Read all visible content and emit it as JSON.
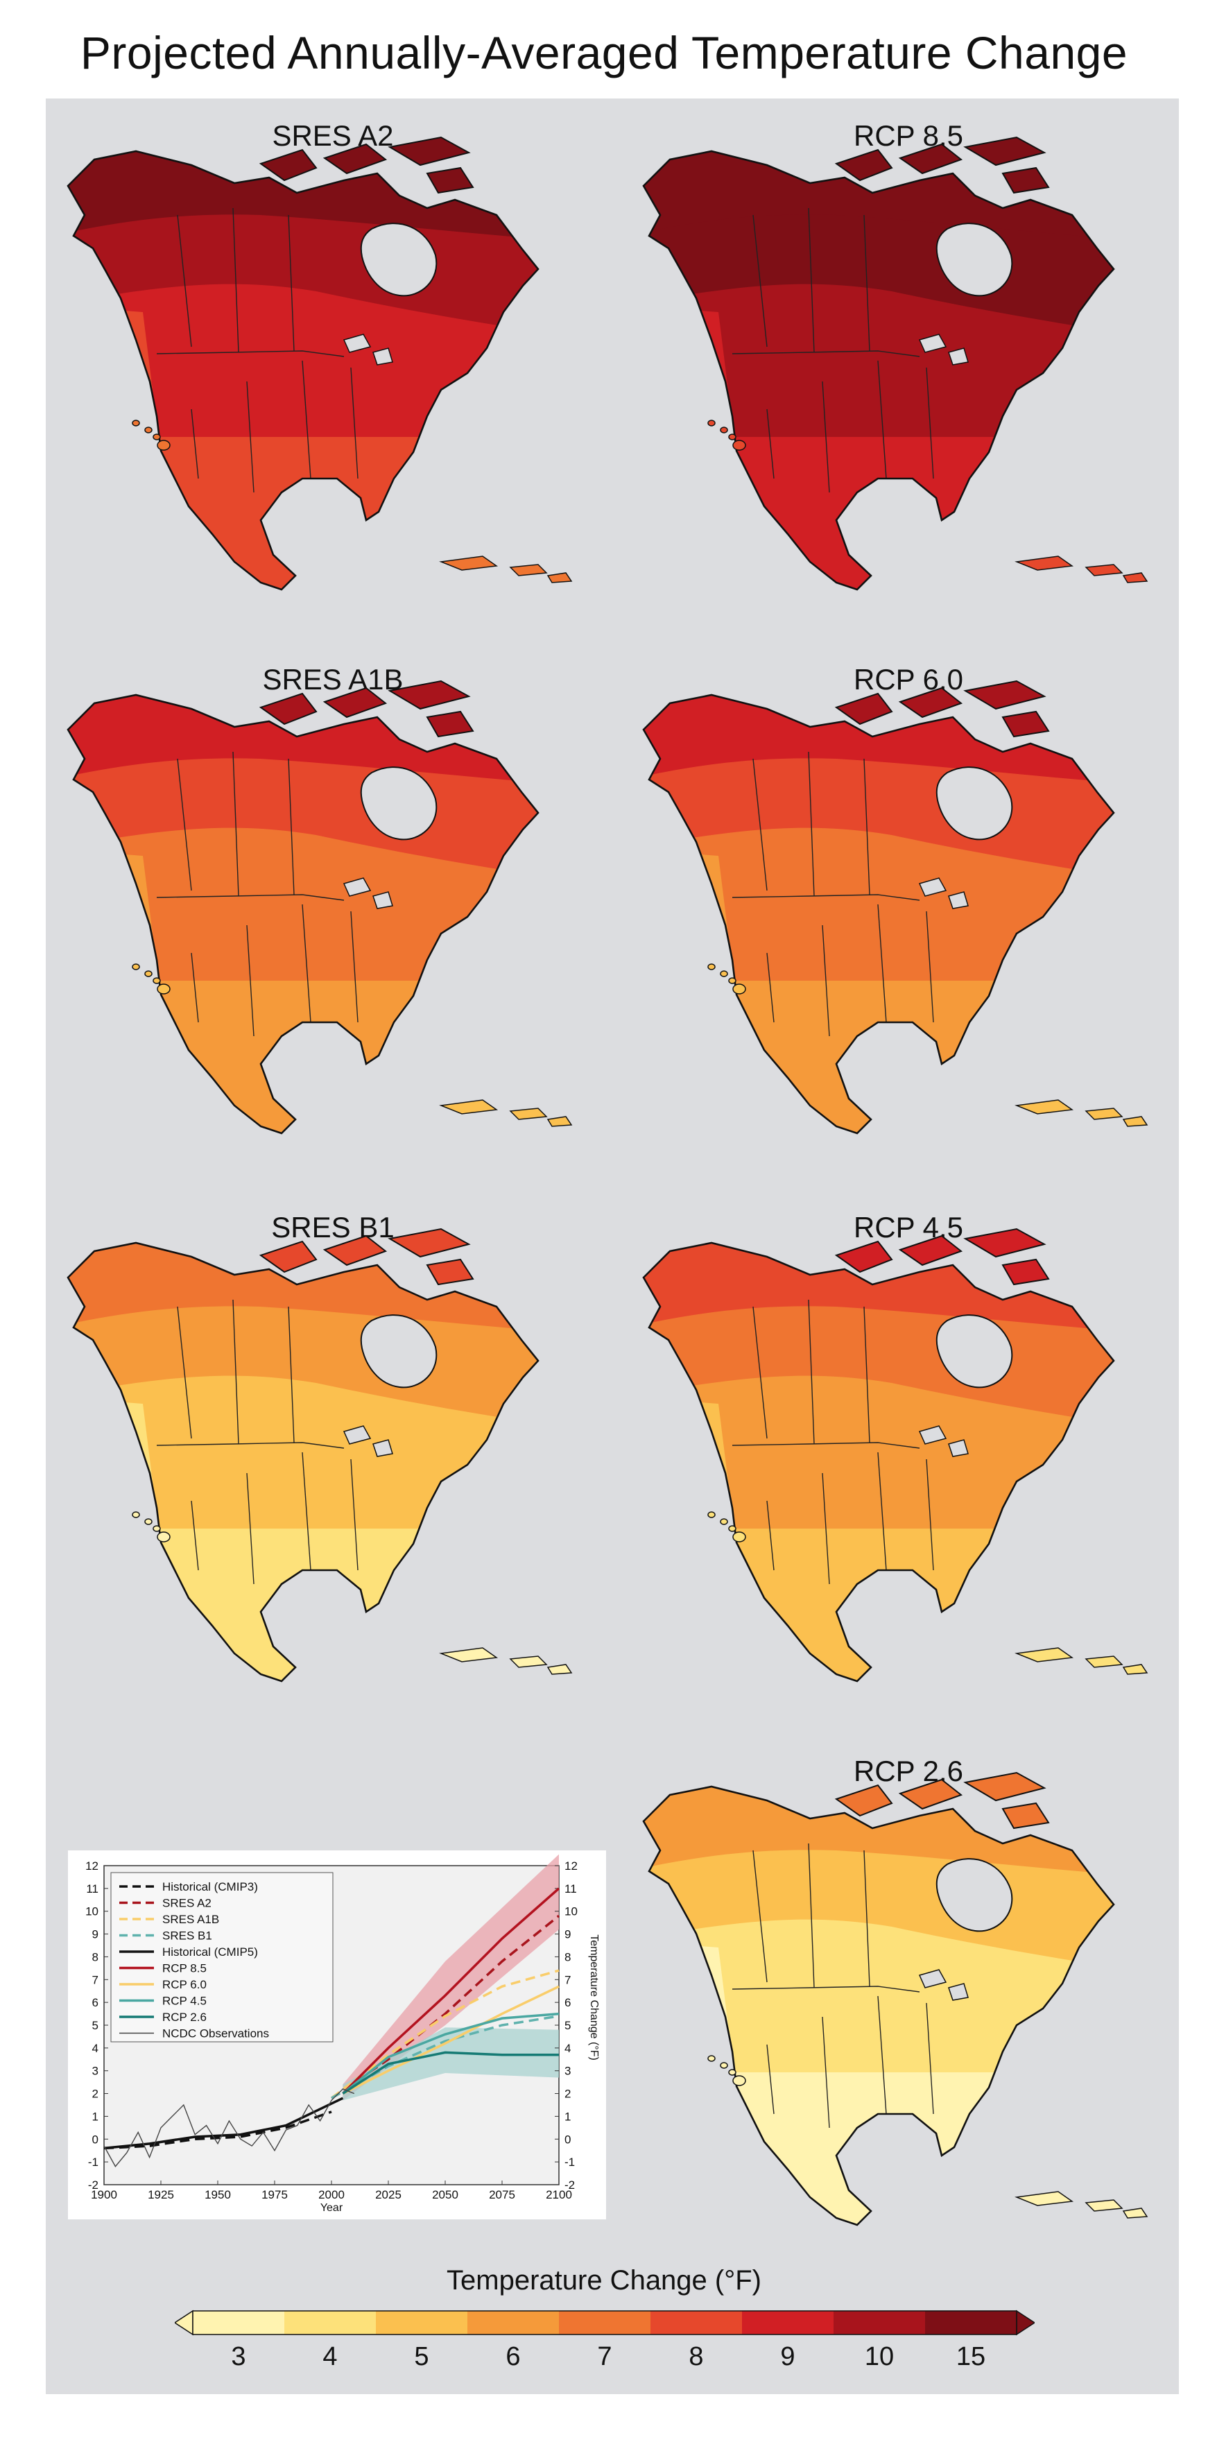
{
  "title": "Projected Annually-Averaged Temperature Change",
  "colors": {
    "panel_bg": "#dcdde0",
    "water": "#dcdde0",
    "land_outline": "#111111",
    "scale": [
      "#fff3b0",
      "#fde17a",
      "#fbc04f",
      "#f59a3a",
      "#ef7531",
      "#e6482c",
      "#d11f24",
      "#a8141c",
      "#7e0f16"
    ]
  },
  "maps": [
    {
      "id": "sres-a2",
      "label": "SRES A2",
      "level": 6
    },
    {
      "id": "rcp-85",
      "label": "RCP 8.5",
      "level": 7
    },
    {
      "id": "sres-a1b",
      "label": "SRES A1B",
      "level": 4
    },
    {
      "id": "rcp-60",
      "label": "RCP 6.0",
      "level": 4
    },
    {
      "id": "sres-b1",
      "label": "SRES B1",
      "level": 2
    },
    {
      "id": "rcp-45",
      "label": "RCP 4.5",
      "level": 3
    },
    {
      "id": "rcp-26",
      "label": "RCP 2.6",
      "level": 1
    }
  ],
  "colorbar": {
    "title": "Temperature Change (°F)",
    "ticks": [
      "3",
      "4",
      "5",
      "6",
      "7",
      "8",
      "9",
      "10",
      "15"
    ]
  },
  "chart_data": {
    "type": "line",
    "xlabel": "Year",
    "ylabel": "Temperature Change (°F)",
    "xlim": [
      1900,
      2100
    ],
    "ylim": [
      -2,
      12
    ],
    "x_ticks": [
      "1900",
      "1925",
      "1950",
      "1975",
      "2000",
      "2025",
      "2050",
      "2075",
      "2100"
    ],
    "y_ticks": [
      "-2",
      "-1",
      "0",
      "1",
      "2",
      "3",
      "4",
      "5",
      "6",
      "7",
      "8",
      "9",
      "10",
      "11",
      "12"
    ],
    "legend_position": "top-left",
    "series": [
      {
        "name": "Historical (CMIP3)",
        "color": "#111111",
        "dash": true,
        "x": [
          1900,
          1920,
          1940,
          1960,
          1980,
          2000
        ],
        "y": [
          -0.4,
          -0.3,
          0.0,
          0.1,
          0.5,
          1.2
        ]
      },
      {
        "name": "SRES A2",
        "color": "#a8141c",
        "dash": true,
        "x": [
          2000,
          2025,
          2050,
          2075,
          2100
        ],
        "y": [
          1.8,
          3.5,
          5.5,
          7.8,
          9.8
        ]
      },
      {
        "name": "SRES A1B",
        "color": "#f9cd6a",
        "dash": true,
        "x": [
          2000,
          2025,
          2050,
          2075,
          2100
        ],
        "y": [
          1.8,
          3.7,
          5.4,
          6.7,
          7.4
        ]
      },
      {
        "name": "SRES B1",
        "color": "#5fb2ad",
        "dash": true,
        "x": [
          2000,
          2025,
          2050,
          2075,
          2100
        ],
        "y": [
          1.8,
          3.2,
          4.3,
          5.0,
          5.4
        ]
      },
      {
        "name": "Historical (CMIP5)",
        "color": "#111111",
        "dash": false,
        "x": [
          1900,
          1920,
          1940,
          1960,
          1980,
          2005
        ],
        "y": [
          -0.4,
          -0.2,
          0.1,
          0.2,
          0.6,
          1.8
        ]
      },
      {
        "name": "RCP 8.5",
        "color": "#b3121f",
        "dash": false,
        "x": [
          2005,
          2025,
          2050,
          2075,
          2100
        ],
        "y": [
          2.0,
          4.0,
          6.3,
          8.8,
          11.0
        ]
      },
      {
        "name": "RCP 6.0",
        "color": "#f9cd6a",
        "dash": false,
        "x": [
          2005,
          2025,
          2050,
          2075,
          2100
        ],
        "y": [
          2.0,
          3.0,
          4.2,
          5.5,
          6.7
        ]
      },
      {
        "name": "RCP 4.5",
        "color": "#4aa7a1",
        "dash": false,
        "x": [
          2005,
          2025,
          2050,
          2075,
          2100
        ],
        "y": [
          2.0,
          3.6,
          4.6,
          5.3,
          5.5
        ]
      },
      {
        "name": "RCP 2.6",
        "color": "#157a74",
        "dash": false,
        "x": [
          2005,
          2025,
          2050,
          2075,
          2100
        ],
        "y": [
          2.0,
          3.3,
          3.8,
          3.7,
          3.7
        ]
      },
      {
        "name": "NCDC Observations",
        "color": "#444444",
        "dash": false,
        "x": [
          1900,
          1905,
          1910,
          1915,
          1920,
          1925,
          1930,
          1935,
          1940,
          1945,
          1950,
          1955,
          1960,
          1965,
          1970,
          1975,
          1980,
          1985,
          1990,
          1995,
          2000,
          2005,
          2010
        ],
        "y": [
          -0.3,
          -1.2,
          -0.6,
          0.3,
          -0.8,
          0.5,
          1.0,
          1.5,
          0.2,
          0.6,
          -0.2,
          0.8,
          0.0,
          -0.3,
          0.3,
          -0.5,
          0.4,
          0.6,
          1.5,
          0.8,
          1.7,
          2.2,
          2.0
        ]
      }
    ],
    "bands": [
      {
        "name": "RCP 8.5 range",
        "color": "#e8a0a8",
        "x": [
          2005,
          2050,
          2100
        ],
        "low": [
          1.7,
          5.0,
          9.2
        ],
        "high": [
          2.4,
          7.8,
          12.5
        ]
      },
      {
        "name": "RCP 2.6 range",
        "color": "#a8d2cf",
        "x": [
          2005,
          2050,
          2100
        ],
        "low": [
          1.7,
          2.9,
          2.7
        ],
        "high": [
          2.4,
          4.9,
          4.8
        ]
      }
    ]
  }
}
